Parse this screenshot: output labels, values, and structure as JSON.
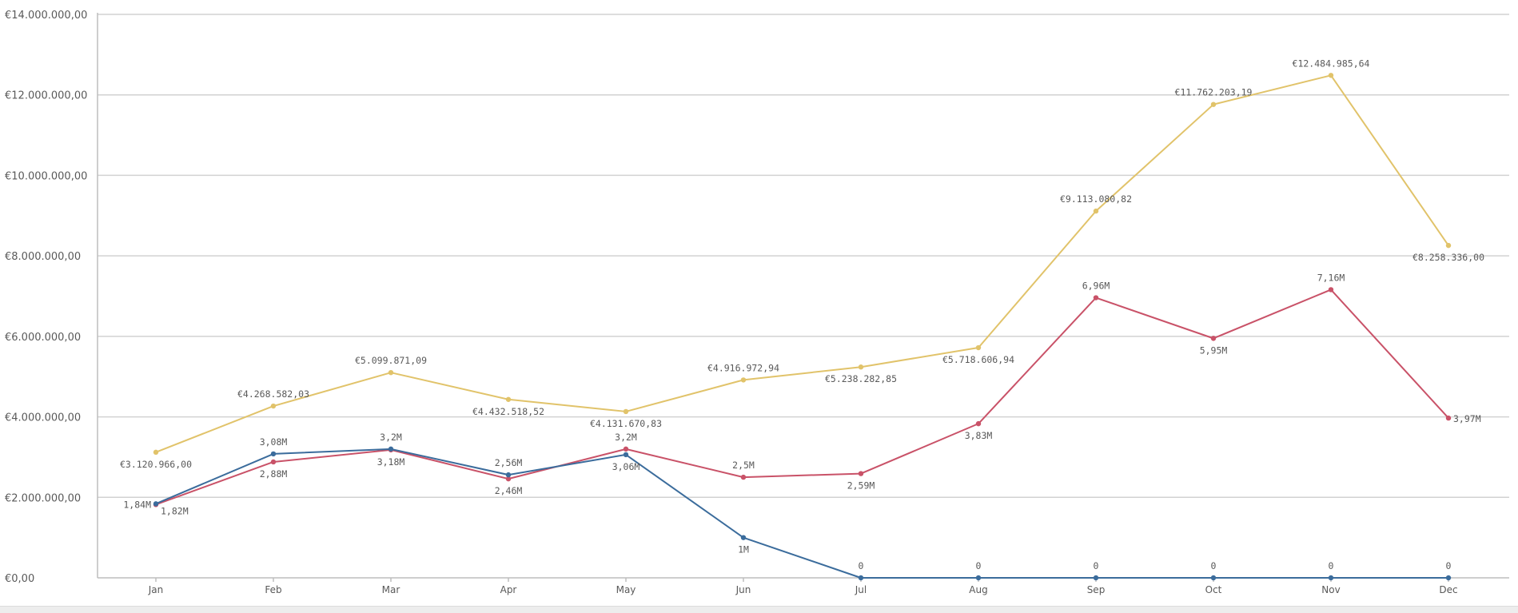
{
  "chart_data": {
    "type": "line",
    "categories": [
      "Jan",
      "Feb",
      "Mar",
      "Apr",
      "May",
      "Jun",
      "Jul",
      "Aug",
      "Sep",
      "Oct",
      "Nov",
      "Dec"
    ],
    "ylim": [
      0,
      14000000
    ],
    "y_ticks": [
      {
        "value": 0,
        "label": "€0,00"
      },
      {
        "value": 2000000,
        "label": "€2.000.000,00"
      },
      {
        "value": 4000000,
        "label": "€4.000.000,00"
      },
      {
        "value": 6000000,
        "label": "€6.000.000,00"
      },
      {
        "value": 8000000,
        "label": "€8.000.000,00"
      },
      {
        "value": 10000000,
        "label": "€10.000.000,00"
      },
      {
        "value": 12000000,
        "label": "€12.000.000,00"
      },
      {
        "value": 14000000,
        "label": "€14.000.000,00"
      }
    ],
    "grid": true,
    "legend": "none",
    "series": [
      {
        "color": "#e1c36a",
        "values": [
          3120966.0,
          4268582.03,
          5099871.09,
          4432518.52,
          4131670.83,
          4916972.94,
          5238282.85,
          5718606.94,
          9113080.82,
          11762203.19,
          12484985.64,
          8258336.0
        ],
        "labels": [
          "€3.120.966,00",
          "€4.268.582,03",
          "€5.099.871,09",
          "€4.432.518,52",
          "€4.131.670,83",
          "€4.916.972,94",
          "€5.238.282,85",
          "€5.718.606,94",
          "€9.113.080,82",
          "€11.762.203,19",
          "€12.484.985,64",
          "€8.258.336,00"
        ],
        "label_pos": [
          "below",
          "above",
          "above",
          "below",
          "below",
          "above",
          "below",
          "below",
          "above",
          "above",
          "above",
          "below"
        ]
      },
      {
        "color": "#c95268",
        "values": [
          1820000,
          2880000,
          3180000,
          2460000,
          3200000,
          2500000,
          2590000,
          3830000,
          6960000,
          5950000,
          7160000,
          3970000
        ],
        "labels": [
          "1,82M",
          "2,88M",
          "3,18M",
          "2,46M",
          "3,2M",
          "2,5M",
          "2,59M",
          "3,83M",
          "6,96M",
          "5,95M",
          "7,16M",
          "3,97M"
        ],
        "label_pos": [
          "below-right",
          "below",
          "below",
          "below",
          "above",
          "above",
          "below",
          "below",
          "above",
          "below",
          "above",
          "right"
        ]
      },
      {
        "color": "#3b6c9c",
        "values": [
          1840000,
          3080000,
          3200000,
          2560000,
          3060000,
          1000000,
          0,
          0,
          0,
          0,
          0,
          0
        ],
        "labels": [
          "1,84M",
          "3,08M",
          "3,2M",
          "2,56M",
          "3,06M",
          "1M",
          "0",
          "0",
          "0",
          "0",
          "0",
          "0"
        ],
        "label_pos": [
          "left",
          "above",
          "above",
          "above",
          "below",
          "below",
          "above",
          "above",
          "above",
          "above",
          "above",
          "above"
        ]
      }
    ]
  }
}
